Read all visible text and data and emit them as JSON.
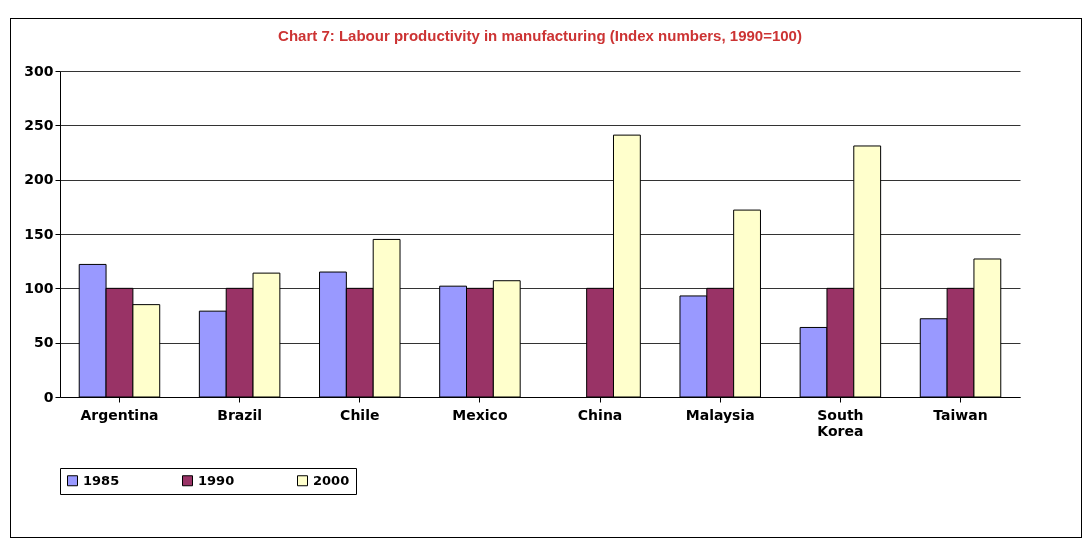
{
  "chart_data": {
    "type": "bar",
    "title": "Chart 7: Labour productivity in manufacturing (Index numbers, 1990=100)",
    "categories": [
      "Argentina",
      "Brazil",
      "Chile",
      "Mexico",
      "China",
      "Malaysia",
      "South Korea",
      "Taiwan"
    ],
    "series": [
      {
        "name": "1985",
        "color": "#9999ff",
        "values": [
          122,
          79,
          115,
          102,
          null,
          93,
          64,
          72
        ]
      },
      {
        "name": "1990",
        "color": "#993366",
        "values": [
          100,
          100,
          100,
          100,
          100,
          100,
          100,
          100
        ]
      },
      {
        "name": "2000",
        "color": "#ffffcc",
        "values": [
          85,
          114,
          145,
          107,
          241,
          172,
          231,
          127
        ]
      }
    ],
    "ylim": [
      0,
      300
    ],
    "yticks": [
      0,
      50,
      100,
      150,
      200,
      250,
      300
    ],
    "grid": "y",
    "legend": "bottom"
  }
}
